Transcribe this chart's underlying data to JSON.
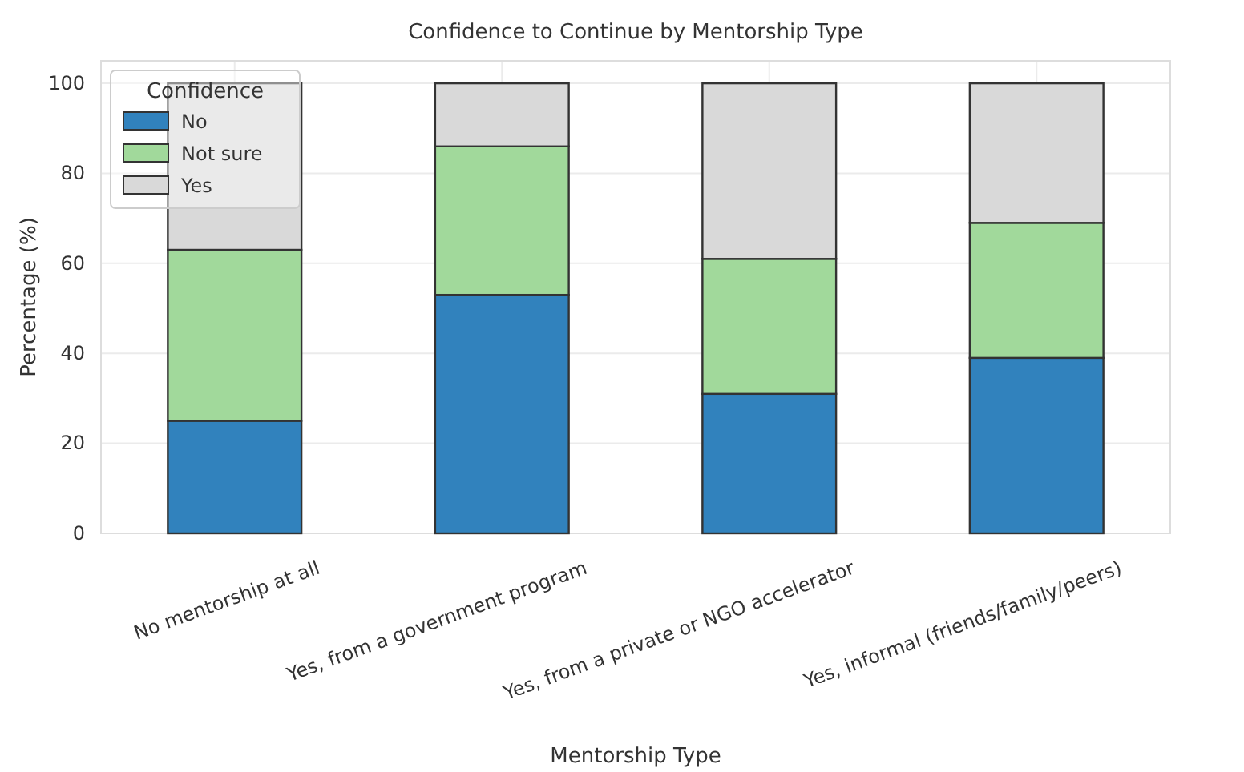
{
  "chart_data": {
    "type": "bar",
    "title": "Confidence to Continue by Mentorship Type",
    "xlabel": "Mentorship Type",
    "ylabel": "Percentage (%)",
    "legend_title": "Confidence",
    "categories": [
      "No mentorship at all",
      "Yes, from a government program",
      "Yes, from a private or NGO accelerator",
      "Yes, informal (friends/family/peers)"
    ],
    "series": [
      {
        "name": "No",
        "color": "#3182bd",
        "values": [
          25,
          53,
          31,
          39
        ]
      },
      {
        "name": "Not sure",
        "color": "#a1d99b",
        "values": [
          38,
          33,
          30,
          30
        ]
      },
      {
        "name": "Yes",
        "color": "#d9d9d9",
        "values": [
          37,
          14,
          39,
          31
        ]
      }
    ],
    "stacked": true,
    "ylim": [
      0,
      105
    ],
    "yticks": [
      0,
      20,
      40,
      60,
      80,
      100
    ],
    "grid": true,
    "legend": "top left"
  }
}
